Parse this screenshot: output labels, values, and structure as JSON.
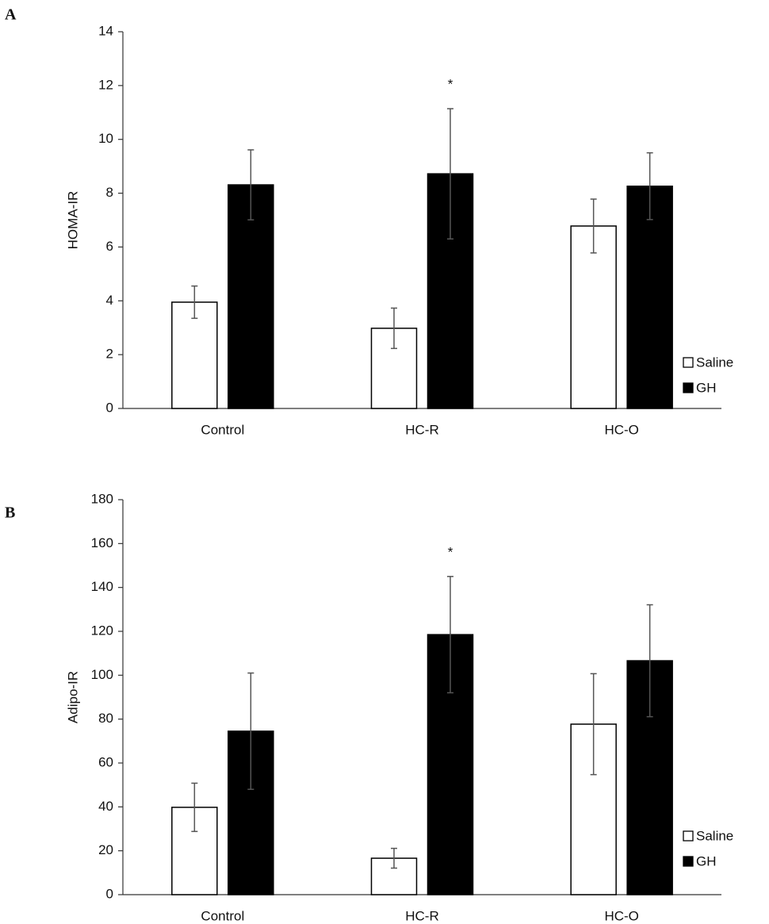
{
  "chart_data": [
    {
      "type": "bar",
      "panel_label": "A",
      "ylabel": "HOMA-IR",
      "categories": [
        "Control",
        "HC-R",
        "HC-O"
      ],
      "series": [
        {
          "name": "Saline",
          "color": "#ffffff",
          "values": [
            3.95,
            2.98,
            6.78
          ],
          "errors": [
            0.6,
            0.75,
            1.0
          ],
          "markers": [
            null,
            null,
            null
          ]
        },
        {
          "name": "GH",
          "color": "#000000",
          "values": [
            8.31,
            8.72,
            8.26
          ],
          "errors": [
            1.3,
            2.42,
            1.24
          ],
          "markers": [
            null,
            "*",
            null
          ]
        }
      ],
      "ylim": [
        0,
        14
      ],
      "yticks": [
        0,
        2,
        4,
        6,
        8,
        10,
        12,
        14
      ],
      "legend": "right"
    },
    {
      "type": "bar",
      "panel_label": "B",
      "ylabel": "Adipo-IR",
      "categories": [
        "Control",
        "HC-R",
        "HC-O"
      ],
      "series": [
        {
          "name": "Saline",
          "color": "#ffffff",
          "values": [
            39.8,
            16.6,
            77.7
          ],
          "errors": [
            11,
            4.5,
            23
          ],
          "markers": [
            null,
            null,
            null
          ]
        },
        {
          "name": "GH",
          "color": "#000000",
          "values": [
            74.5,
            118.5,
            106.6
          ],
          "errors": [
            26.5,
            26.5,
            25.5
          ],
          "markers": [
            null,
            "*",
            null
          ]
        }
      ],
      "ylim": [
        0,
        180
      ],
      "yticks": [
        0,
        20,
        40,
        60,
        80,
        100,
        120,
        140,
        160,
        180
      ],
      "legend": "right"
    }
  ]
}
